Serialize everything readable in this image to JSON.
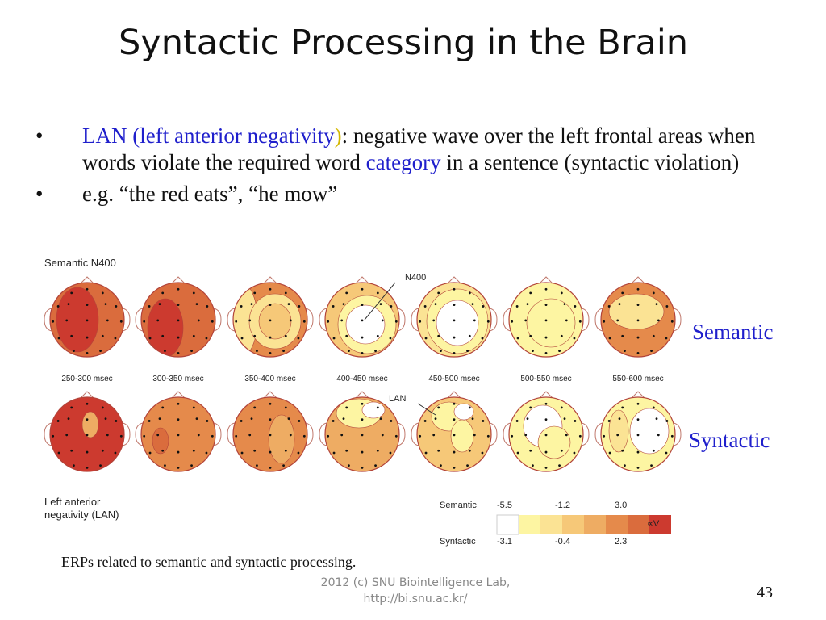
{
  "title": "Syntactic Processing in the Brain",
  "bullets": [
    {
      "term_a": "LAN (left anterior negativity",
      "term_b": ")",
      "text_a": ": negative wave over the left frontal areas when words violate the required word ",
      "highlight": "category",
      "text_b": " in a sentence (syntactic violation)"
    },
    {
      "text": "e.g. “the red eats”, “he mow”"
    }
  ],
  "bullet_symbol": "•",
  "figure": {
    "semantic_title": "Semantic N400",
    "syntactic_title_line1": "Left anterior",
    "syntactic_title_line2": "negativity (LAN)",
    "n400_annotation": "N400",
    "lan_annotation": "LAN",
    "time_labels": [
      "250-300 msec",
      "300-350 msec",
      "350-400 msec",
      "400-450 msec",
      "450-500 msec",
      "500-550 msec",
      "550-600 msec"
    ],
    "scale": {
      "semantic_label": "Semantic",
      "syntactic_label": "Syntactic",
      "semantic_values": [
        "-5.5",
        "-1.2",
        "3.0"
      ],
      "syntactic_values": [
        "-3.1",
        "-0.4",
        "2.3"
      ],
      "unit": "∝V",
      "colors": [
        "#ffffff",
        "#fdf5a2",
        "#fbe394",
        "#f6c878",
        "#eeac63",
        "#e58a4b",
        "#da6c3d",
        "#cc3a2f"
      ]
    }
  },
  "side_labels": {
    "semantic": "Semantic",
    "syntactic": "Syntactic"
  },
  "caption": "ERPs related to semantic and syntactic processing.",
  "footer_line1": "2012 (c) SNU Biointelligence Lab,",
  "footer_line2": "http://bi.snu.ac.kr/",
  "page_number": "43"
}
